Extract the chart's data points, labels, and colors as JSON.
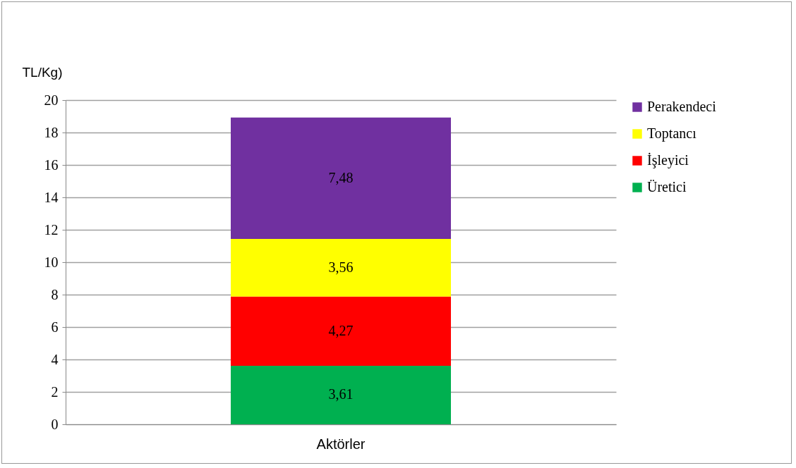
{
  "chart_data": {
    "type": "bar",
    "stacked": true,
    "ylabel": "TL/Kg)",
    "categories": [
      "Aktörler"
    ],
    "series": [
      {
        "name": "Üretici",
        "color": "#00b050",
        "values": [
          3.61
        ],
        "value_labels": [
          "3,61"
        ]
      },
      {
        "name": "İşleyici",
        "color": "#ff0000",
        "values": [
          4.27
        ],
        "value_labels": [
          "4,27"
        ]
      },
      {
        "name": "Toptancı",
        "color": "#ffff00",
        "values": [
          3.56
        ],
        "value_labels": [
          "3,56"
        ]
      },
      {
        "name": "Perakendeci",
        "color": "#7030a0",
        "values": [
          7.48
        ],
        "value_labels": [
          "7,48"
        ]
      }
    ],
    "ylim": [
      0,
      20
    ],
    "yticks": [
      0,
      2,
      4,
      6,
      8,
      10,
      12,
      14,
      16,
      18,
      20
    ],
    "grid": "y",
    "legend": "right"
  }
}
